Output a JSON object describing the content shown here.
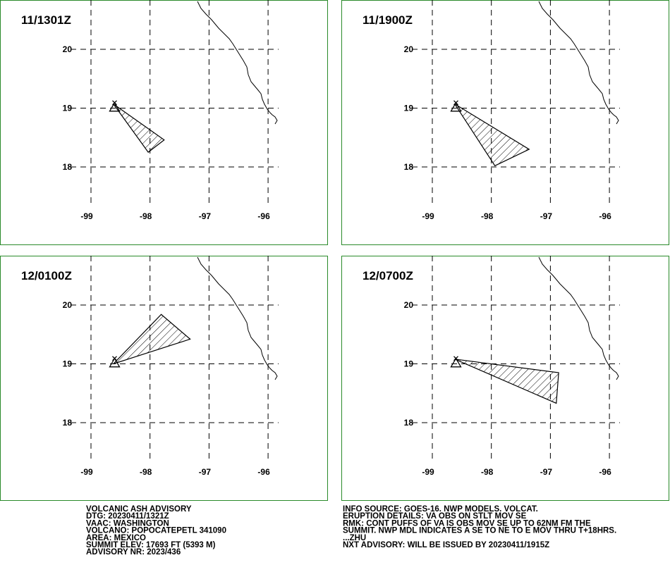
{
  "panels": [
    {
      "time": "11/1301Z",
      "polygon": [
        [
          -98.62,
          19.07
        ],
        [
          -97.76,
          18.46
        ],
        [
          -98.03,
          18.25
        ]
      ]
    },
    {
      "time": "11/1900Z",
      "polygon": [
        [
          -98.62,
          19.07
        ],
        [
          -97.36,
          18.3
        ],
        [
          -97.94,
          18.02
        ]
      ]
    },
    {
      "time": "12/0100Z",
      "polygon": [
        [
          -98.62,
          19.0
        ],
        [
          -97.81,
          19.84
        ],
        [
          -97.32,
          19.42
        ]
      ]
    },
    {
      "time": "12/0700Z",
      "polygon": [
        [
          -98.62,
          19.08
        ],
        [
          -96.86,
          18.85
        ],
        [
          -96.9,
          18.33
        ]
      ]
    }
  ],
  "volcano": [
    -98.6,
    19.02
  ],
  "lon_ticks": [
    -99,
    -98,
    -97,
    -96
  ],
  "lat_ticks": [
    20,
    19,
    18
  ],
  "advisory_left": [
    "VOLCANIC ASH ADVISORY",
    "DTG: 20230411/1321Z",
    "VAAC: WASHINGTON",
    "VOLCANO: POPOCATEPETL 341090",
    "AREA: MEXICO",
    "SUMMIT ELEV: 17693 FT (5393 M)",
    "ADVISORY NR: 2023/436"
  ],
  "advisory_right": [
    "INFO SOURCE: GOES-16. NWP MODELS. VOLCAT.",
    "ERUPTION DETAILS: VA OBS ON STLT MOV SE",
    "RMK: CONT PUFFS OF VA IS OBS MOV SE UP TO 62NM FM THE",
    "SUMMIT. NWP MDL INDICATES A SE TO NE TO E MOV THRU T+18HRS.",
    "...ZHU",
    "NXT ADVISORY: WILL BE ISSUED BY 20230411/1915Z"
  ]
}
